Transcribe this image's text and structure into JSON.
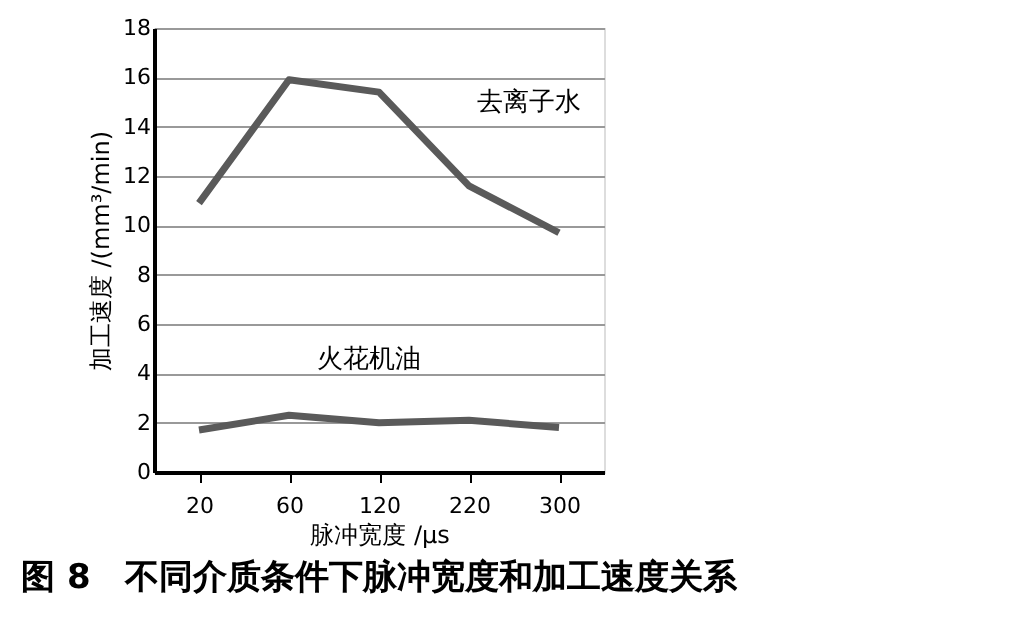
{
  "chart_data": {
    "type": "line",
    "title": "图 8　不同介质条件下脉冲宽度和加工速度关系",
    "xlabel": "脉冲宽度 /μs",
    "ylabel": "加工速度 /(mm³/min)",
    "categories": [
      "20",
      "60",
      "120",
      "220",
      "300"
    ],
    "series": [
      {
        "name": "去离子水",
        "color": "#5a5a5a",
        "values": [
          10.9,
          15.9,
          15.4,
          11.6,
          9.7
        ]
      },
      {
        "name": "火花机油",
        "color": "#5a5a5a",
        "values": [
          1.7,
          2.3,
          2.0,
          2.1,
          1.8
        ]
      }
    ],
    "ylim": [
      0,
      18
    ],
    "yticks": [
      0,
      2,
      4,
      6,
      8,
      10,
      12,
      14,
      16,
      18
    ],
    "grid": "y",
    "legend": false,
    "marker": "none",
    "line_style": "solid"
  }
}
